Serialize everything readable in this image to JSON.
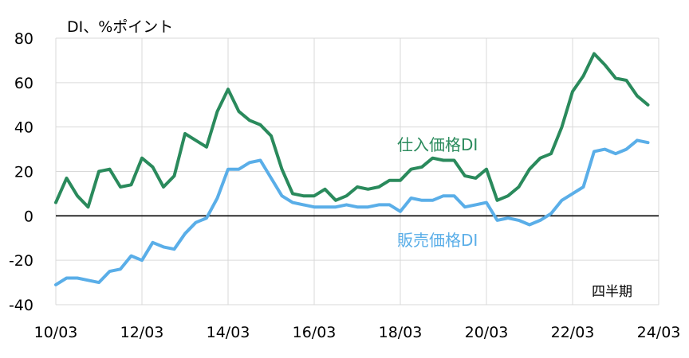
{
  "chart_data": {
    "type": "line",
    "unit_label": "DI、%ポイント",
    "period_label": "四半期",
    "ylim": [
      -40,
      80
    ],
    "yticks": [
      80,
      60,
      40,
      20,
      0,
      -20,
      -40
    ],
    "x_tick_labels": [
      "10/03",
      "12/03",
      "14/03",
      "16/03",
      "18/03",
      "20/03",
      "22/03",
      "24/03"
    ],
    "grid": true,
    "x": [
      "10/03",
      "10/06",
      "10/09",
      "10/12",
      "11/03",
      "11/06",
      "11/09",
      "11/12",
      "12/03",
      "12/06",
      "12/09",
      "12/12",
      "13/03",
      "13/06",
      "13/09",
      "13/12",
      "14/03",
      "14/06",
      "14/09",
      "14/12",
      "15/03",
      "15/06",
      "15/09",
      "15/12",
      "16/03",
      "16/06",
      "16/09",
      "16/12",
      "17/03",
      "17/06",
      "17/09",
      "17/12",
      "18/03",
      "18/06",
      "18/09",
      "18/12",
      "19/03",
      "19/06",
      "19/09",
      "19/12",
      "20/03",
      "20/06",
      "20/09",
      "20/12",
      "21/03",
      "21/06",
      "21/09",
      "21/12",
      "22/03",
      "22/06",
      "22/09",
      "22/12",
      "23/03",
      "23/06",
      "23/09",
      "23/12",
      "24/03"
    ],
    "series": [
      {
        "name": "仕入価格DI",
        "color": "#2a8a5c",
        "values": [
          6,
          17,
          9,
          4,
          20,
          21,
          13,
          14,
          26,
          22,
          13,
          18,
          37,
          34,
          31,
          47,
          57,
          47,
          43,
          41,
          36,
          21,
          10,
          9,
          9,
          12,
          7,
          9,
          13,
          12,
          13,
          16,
          16,
          21,
          22,
          26,
          25,
          25,
          18,
          17,
          21,
          7,
          9,
          13,
          21,
          26,
          28,
          40,
          56,
          63,
          73,
          68,
          62,
          61,
          54,
          50,
          null
        ]
      },
      {
        "name": "販売価格DI",
        "color": "#5aaee8",
        "values": [
          -31,
          -28,
          -28,
          -29,
          -30,
          -25,
          -24,
          -18,
          -20,
          -12,
          -14,
          -15,
          -8,
          -3,
          -1,
          8,
          21,
          21,
          24,
          25,
          17,
          9,
          6,
          5,
          4,
          4,
          4,
          5,
          4,
          4,
          5,
          5,
          2,
          8,
          7,
          7,
          9,
          9,
          4,
          5,
          6,
          -2,
          -1,
          -2,
          -4,
          -2,
          1,
          7,
          10,
          13,
          29,
          30,
          28,
          30,
          34,
          33,
          null
        ]
      }
    ]
  }
}
